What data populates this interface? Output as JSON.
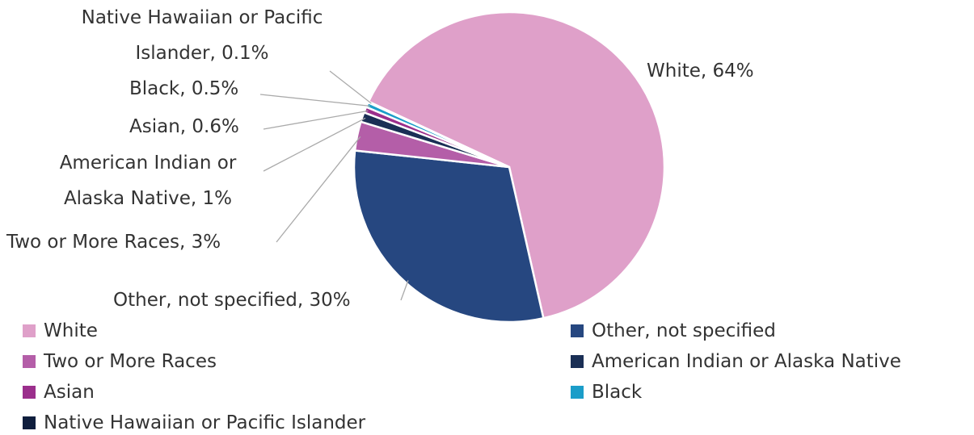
{
  "chart_data": {
    "type": "pie",
    "categories": [
      "White",
      "Other, not specified",
      "Two or More Races",
      "American Indian or Alaska Native",
      "Asian",
      "Black",
      "Native Hawaiian or Pacific Islander"
    ],
    "values": [
      64,
      30,
      3,
      1,
      0.6,
      0.5,
      0.1
    ],
    "value_labels": [
      "White, 64%",
      "Other, not specified, 30%",
      "Two or More Races, 3%",
      "American Indian or Alaska Native, 1%",
      "Asian, 0.6%",
      "Black, 0.5%",
      "Native Hawaiian or Pacific Islander, 0.1%"
    ],
    "colors": [
      "#dfa0c9",
      "#264780",
      "#b45ea8",
      "#1a2f55",
      "#9b2f8c",
      "#1b9dc9",
      "#0f1e3d"
    ],
    "legend": "bottom"
  }
}
